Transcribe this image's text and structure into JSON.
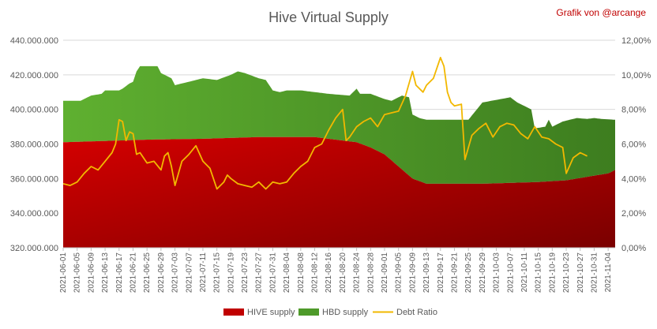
{
  "chart_data": {
    "type": "area",
    "title": "Hive Virtual Supply",
    "credit": "Grafik von @arcange",
    "left_axis": {
      "min": 320000000,
      "max": 440000000,
      "step": 20000000,
      "tick_labels": [
        "320.000.000",
        "340.000.000",
        "360.000.000",
        "380.000.000",
        "400.000.000",
        "420.000.000",
        "440.000.000"
      ]
    },
    "right_axis": {
      "min": 0,
      "max": 12,
      "step": 2,
      "tick_labels": [
        "0,00%",
        "2,00%",
        "4,00%",
        "6,00%",
        "8,00%",
        "10,00%",
        "12,00%"
      ]
    },
    "x_tick_labels": [
      "2021-06-01",
      "2021-06-05",
      "2021-06-09",
      "2021-06-13",
      "2021-06-17",
      "2021-06-21",
      "2021-06-25",
      "2021-06-29",
      "2021-07-03",
      "2021-07-07",
      "2021-07-11",
      "2021-07-15",
      "2021-07-19",
      "2021-07-23",
      "2021-07-27",
      "2021-07-31",
      "2021-08-04",
      "2021-08-08",
      "2021-08-12",
      "2021-08-16",
      "2021-08-20",
      "2021-08-24",
      "2021-08-28",
      "2021-09-01",
      "2021-09-05",
      "2021-09-09",
      "2021-09-13",
      "2021-09-17",
      "2021-09-21",
      "2021-09-25",
      "2021-09-29",
      "2021-10-03",
      "2021-10-07",
      "2021-10-11",
      "2021-10-15",
      "2021-10-19",
      "2021-10-23",
      "2021-10-27",
      "2021-10-31",
      "2021-11-04"
    ],
    "gridlines": true,
    "legend_position": "bottom",
    "series": [
      {
        "name": "HIVE supply",
        "kind": "area",
        "color": "#c00000",
        "axis": "left",
        "values_by_day": [
          [
            0,
            381000000
          ],
          [
            16,
            382000000
          ],
          [
            24,
            382500000
          ],
          [
            40,
            383000000
          ],
          [
            56,
            384000000
          ],
          [
            72,
            384000000
          ],
          [
            76,
            383000000
          ],
          [
            84,
            381000000
          ],
          [
            88,
            378000000
          ],
          [
            92,
            374000000
          ],
          [
            96,
            367000000
          ],
          [
            100,
            360000000
          ],
          [
            104,
            357000000
          ],
          [
            112,
            357000000
          ],
          [
            120,
            357000000
          ],
          [
            128,
            357500000
          ],
          [
            136,
            358000000
          ],
          [
            144,
            359000000
          ],
          [
            150,
            361000000
          ],
          [
            156,
            363000000
          ],
          [
            158,
            365000000
          ]
        ]
      },
      {
        "name": "HBD supply",
        "kind": "area-stacked-top",
        "color": "#4e9a2a",
        "axis": "left",
        "top_values_by_day": [
          [
            0,
            405000000
          ],
          [
            5,
            405000000
          ],
          [
            6,
            406000000
          ],
          [
            8,
            408000000
          ],
          [
            11,
            409000000
          ],
          [
            12,
            411000000
          ],
          [
            16,
            411000000
          ],
          [
            17,
            412000000
          ],
          [
            19,
            415000000
          ],
          [
            20,
            416000000
          ],
          [
            21,
            422000000
          ],
          [
            22,
            425000000
          ],
          [
            27,
            425000000
          ],
          [
            28,
            421000000
          ],
          [
            31,
            418000000
          ],
          [
            32,
            414000000
          ],
          [
            34,
            415000000
          ],
          [
            36,
            416000000
          ],
          [
            40,
            418000000
          ],
          [
            44,
            417000000
          ],
          [
            48,
            420000000
          ],
          [
            50,
            422000000
          ],
          [
            52,
            421000000
          ],
          [
            56,
            418000000
          ],
          [
            58,
            417000000
          ],
          [
            60,
            411000000
          ],
          [
            62,
            410000000
          ],
          [
            64,
            411000000
          ],
          [
            68,
            411000000
          ],
          [
            72,
            410000000
          ],
          [
            76,
            409000000
          ],
          [
            82,
            408000000
          ],
          [
            84,
            412000000
          ],
          [
            85,
            409000000
          ],
          [
            88,
            409000000
          ],
          [
            92,
            406000000
          ],
          [
            94,
            405000000
          ],
          [
            97,
            408000000
          ],
          [
            99,
            407000000
          ],
          [
            100,
            397000000
          ],
          [
            102,
            395000000
          ],
          [
            104,
            394000000
          ],
          [
            110,
            394000000
          ],
          [
            116,
            394000000
          ],
          [
            120,
            404000000
          ],
          [
            128,
            407000000
          ],
          [
            130,
            404000000
          ],
          [
            132,
            402000000
          ],
          [
            134,
            400000000
          ],
          [
            135,
            389000000
          ],
          [
            138,
            390000000
          ],
          [
            139,
            394000000
          ],
          [
            140,
            390000000
          ],
          [
            143,
            393000000
          ],
          [
            147,
            395000000
          ],
          [
            150,
            394500000
          ],
          [
            152,
            395000000
          ],
          [
            154,
            394500000
          ],
          [
            158,
            394000000
          ]
        ]
      },
      {
        "name": "Debt Ratio",
        "kind": "line",
        "color": "#f2b800",
        "axis": "right",
        "values_by_day": [
          [
            0,
            3.7
          ],
          [
            2,
            3.6
          ],
          [
            4,
            3.8
          ],
          [
            6,
            4.3
          ],
          [
            8,
            4.7
          ],
          [
            10,
            4.5
          ],
          [
            12,
            5.0
          ],
          [
            14,
            5.5
          ],
          [
            15,
            6.0
          ],
          [
            16,
            7.4
          ],
          [
            17,
            7.3
          ],
          [
            18,
            6.2
          ],
          [
            19,
            6.7
          ],
          [
            20,
            6.6
          ],
          [
            21,
            5.4
          ],
          [
            22,
            5.5
          ],
          [
            24,
            4.9
          ],
          [
            26,
            5.0
          ],
          [
            28,
            4.5
          ],
          [
            29,
            5.3
          ],
          [
            30,
            5.5
          ],
          [
            31,
            4.7
          ],
          [
            32,
            3.6
          ],
          [
            34,
            5.0
          ],
          [
            36,
            5.4
          ],
          [
            38,
            5.9
          ],
          [
            40,
            5.0
          ],
          [
            42,
            4.6
          ],
          [
            44,
            3.4
          ],
          [
            46,
            3.8
          ],
          [
            47,
            4.2
          ],
          [
            48,
            4.0
          ],
          [
            50,
            3.7
          ],
          [
            52,
            3.6
          ],
          [
            54,
            3.5
          ],
          [
            56,
            3.8
          ],
          [
            58,
            3.4
          ],
          [
            60,
            3.8
          ],
          [
            62,
            3.7
          ],
          [
            64,
            3.8
          ],
          [
            66,
            4.3
          ],
          [
            68,
            4.7
          ],
          [
            70,
            5.0
          ],
          [
            72,
            5.8
          ],
          [
            74,
            6.0
          ],
          [
            76,
            6.8
          ],
          [
            78,
            7.5
          ],
          [
            80,
            8.0
          ],
          [
            81,
            6.2
          ],
          [
            82,
            6.4
          ],
          [
            84,
            7.0
          ],
          [
            86,
            7.3
          ],
          [
            88,
            7.5
          ],
          [
            90,
            7.0
          ],
          [
            92,
            7.7
          ],
          [
            94,
            7.8
          ],
          [
            96,
            7.9
          ],
          [
            98,
            8.8
          ],
          [
            100,
            10.2
          ],
          [
            101,
            9.4
          ],
          [
            103,
            9.0
          ],
          [
            104,
            9.4
          ],
          [
            106,
            9.8
          ],
          [
            108,
            11.0
          ],
          [
            109,
            10.5
          ],
          [
            110,
            9.0
          ],
          [
            111,
            8.4
          ],
          [
            112,
            8.2
          ],
          [
            114,
            8.3
          ],
          [
            115,
            5.1
          ],
          [
            117,
            6.5
          ],
          [
            119,
            6.9
          ],
          [
            121,
            7.2
          ],
          [
            123,
            6.4
          ],
          [
            125,
            7.0
          ],
          [
            127,
            7.2
          ],
          [
            129,
            7.1
          ],
          [
            131,
            6.6
          ],
          [
            133,
            6.3
          ],
          [
            135,
            7.0
          ],
          [
            137,
            6.4
          ],
          [
            139,
            6.3
          ],
          [
            141,
            6.0
          ],
          [
            143,
            5.8
          ],
          [
            144,
            4.3
          ],
          [
            146,
            5.2
          ],
          [
            148,
            5.5
          ],
          [
            150,
            5.3
          ]
        ]
      }
    ]
  },
  "legend": [
    {
      "label": "HIVE supply",
      "color": "#c00000",
      "kind": "box"
    },
    {
      "label": "HBD supply",
      "color": "#4e9a2a",
      "kind": "box"
    },
    {
      "label": "Debt Ratio",
      "color": "#f2b800",
      "kind": "line"
    }
  ]
}
